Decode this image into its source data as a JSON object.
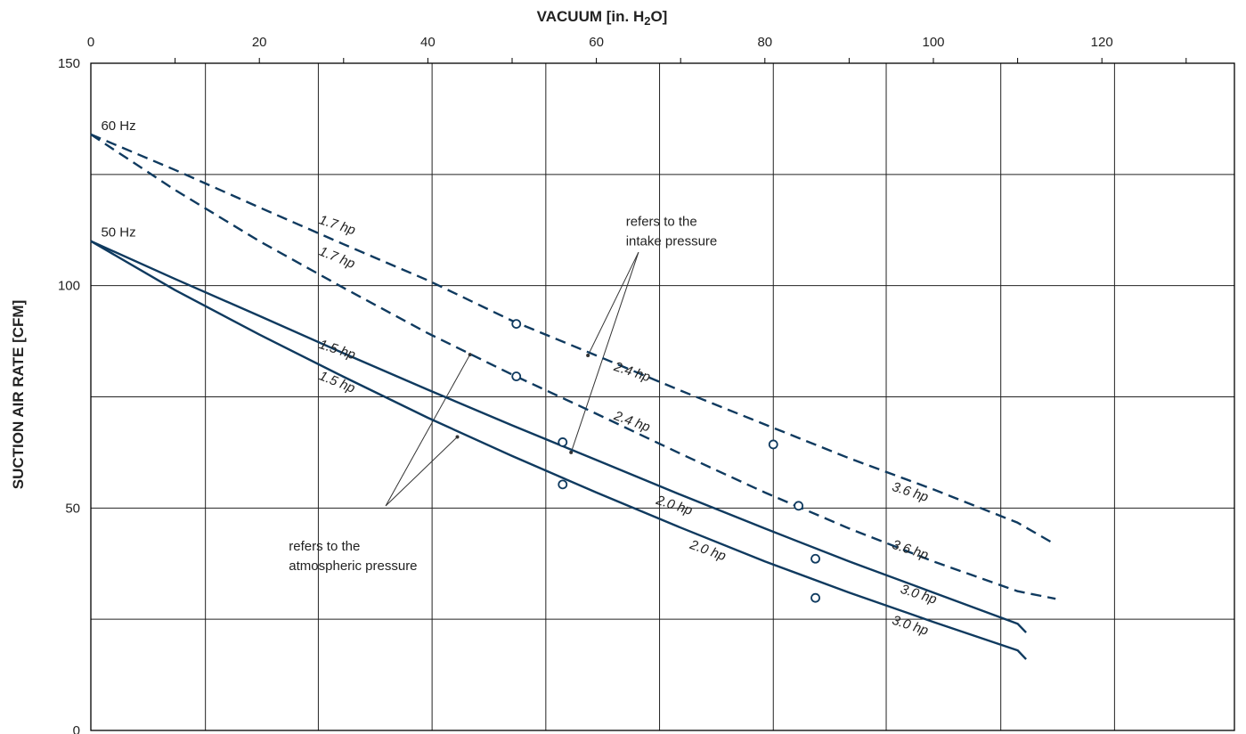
{
  "colors": {
    "series": "#0f3a5f",
    "grid": "#222222",
    "frame": "#000000",
    "leader": "#333333",
    "background": "#ffffff"
  },
  "chart_data": {
    "type": "line",
    "title": "",
    "xlabel_main": "VACUUM  [in. H",
    "xlabel_sub": "2",
    "xlabel_tail": "O]",
    "ylabel": "SUCTION AIR RATE  [CFM]",
    "xlim": [
      0,
      135
    ],
    "ylim": [
      0,
      150
    ],
    "x_ticks": [
      0,
      20,
      40,
      60,
      80,
      100,
      120
    ],
    "y_ticks": [
      0,
      50,
      100,
      150
    ],
    "x_tick_labels": [
      "0",
      "20",
      "40",
      "60",
      "80",
      "100",
      "120"
    ],
    "y_tick_labels": [
      "0",
      "50",
      "100",
      "150"
    ],
    "grid_x": [
      13.6,
      27,
      40.5,
      54,
      67.5,
      81,
      94.4,
      108,
      121.5
    ],
    "grid_y": [
      25,
      50,
      75,
      100,
      125
    ],
    "legend": "none",
    "hz_labels": [
      {
        "text": "60 Hz",
        "x": 1,
        "y": 135
      },
      {
        "text": "50 Hz",
        "x": 1,
        "y": 111
      }
    ],
    "series": [
      {
        "style": "dashed",
        "points": [
          [
            0,
            134
          ],
          [
            10,
            126
          ],
          [
            20,
            117.6
          ],
          [
            30,
            109.3
          ],
          [
            40,
            101.2
          ],
          [
            50,
            92.1
          ],
          [
            60,
            84.3
          ],
          [
            70,
            76.4
          ],
          [
            80,
            68.8
          ],
          [
            90,
            61.2
          ],
          [
            100,
            54.2
          ],
          [
            110,
            46.7
          ],
          [
            114.5,
            41.8
          ]
        ],
        "markers": [
          [
            50.5,
            91.4
          ],
          [
            81,
            64.3
          ]
        ],
        "labels": [
          {
            "text": "1.7 hp",
            "x": 27,
            "y": 114,
            "angle": 18
          },
          {
            "text": "2.4 hp",
            "x": 62,
            "y": 81,
            "angle": 18
          },
          {
            "text": "3.6 hp",
            "x": 95,
            "y": 54,
            "angle": 18
          }
        ]
      },
      {
        "style": "dashed",
        "points": [
          [
            0,
            134
          ],
          [
            10,
            121.5
          ],
          [
            20,
            110
          ],
          [
            30,
            99.5
          ],
          [
            40,
            89.3
          ],
          [
            50,
            80
          ],
          [
            60,
            71.2
          ],
          [
            70,
            62.2
          ],
          [
            80,
            53.5
          ],
          [
            90,
            45.4
          ],
          [
            100,
            38
          ],
          [
            110,
            31.3
          ],
          [
            114.5,
            29.6
          ]
        ],
        "markers": [
          [
            50.5,
            79.6
          ],
          [
            84,
            50.5
          ]
        ],
        "labels": [
          {
            "text": "1.7 hp",
            "x": 27,
            "y": 107,
            "angle": 22
          },
          {
            "text": "2.4 hp",
            "x": 62,
            "y": 70,
            "angle": 20
          },
          {
            "text": "3.6 hp",
            "x": 95,
            "y": 41,
            "angle": 18
          }
        ]
      },
      {
        "style": "solid",
        "points": [
          [
            0,
            110
          ],
          [
            10,
            101.5
          ],
          [
            20,
            93.2
          ],
          [
            30,
            84.8
          ],
          [
            40,
            76.6
          ],
          [
            50,
            68.6
          ],
          [
            60,
            60.8
          ],
          [
            70,
            53
          ],
          [
            80,
            45.4
          ],
          [
            90,
            38
          ],
          [
            100,
            31
          ],
          [
            110,
            24
          ],
          [
            111,
            22
          ]
        ],
        "markers": [
          [
            56,
            64.8
          ],
          [
            86,
            38.6
          ]
        ],
        "labels": [
          {
            "text": "1.5 hp",
            "x": 27,
            "y": 86,
            "angle": 18
          },
          {
            "text": "2.0 hp",
            "x": 67,
            "y": 51,
            "angle": 18
          },
          {
            "text": "3.0 hp",
            "x": 96,
            "y": 31,
            "angle": 18
          }
        ]
      },
      {
        "style": "solid",
        "points": [
          [
            0,
            110
          ],
          [
            10,
            99
          ],
          [
            20,
            89
          ],
          [
            30,
            79.5
          ],
          [
            40,
            70.3
          ],
          [
            50,
            61.7
          ],
          [
            60,
            53.5
          ],
          [
            70,
            45.6
          ],
          [
            80,
            38
          ],
          [
            90,
            31
          ],
          [
            100,
            24.4
          ],
          [
            110,
            18
          ],
          [
            111,
            16
          ]
        ],
        "markers": [
          [
            56,
            55.3
          ],
          [
            86,
            29.8
          ]
        ],
        "labels": [
          {
            "text": "1.5 hp",
            "x": 27,
            "y": 79,
            "angle": 22
          },
          {
            "text": "2.0 hp",
            "x": 71,
            "y": 41,
            "angle": 20
          },
          {
            "text": "3.0 hp",
            "x": 95,
            "y": 24,
            "angle": 18
          }
        ]
      }
    ],
    "annotations": [
      {
        "lines": [
          "refers to the",
          "intake pressure"
        ],
        "text_x": 63.5,
        "text_y": 113.5,
        "anchor_x": 64,
        "apex_x": 65,
        "apex_y": 107.5,
        "targets": [
          [
            59,
            84.3
          ],
          [
            57,
            62.5
          ]
        ]
      },
      {
        "lines": [
          "refers to the",
          "atmospheric pressure"
        ],
        "text_x": 23.5,
        "text_y": 40.5,
        "anchor_x": 23.5,
        "apex_x": 35,
        "apex_y": 50.5,
        "targets": [
          [
            45,
            84.5
          ],
          [
            43.5,
            66
          ]
        ]
      }
    ]
  }
}
